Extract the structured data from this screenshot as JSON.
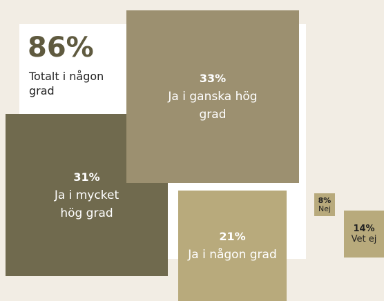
{
  "chart_data": {
    "type": "square",
    "total": 86,
    "total_label": "86%",
    "total_text": "Totalt i någon grad",
    "categories": [
      "Ja i ganska hög grad",
      "Ja i mycket hög grad",
      "Ja i någon grad",
      "Nej",
      "Vet ej"
    ],
    "values": [
      33,
      31,
      21,
      8,
      14
    ],
    "value_labels": [
      "33%",
      "31%",
      "21%",
      "8%",
      "14%"
    ],
    "colors": [
      "#9c9070",
      "#706a4e",
      "#b8aa7c",
      "#b8aa7c",
      "#b8aa7c"
    ]
  }
}
